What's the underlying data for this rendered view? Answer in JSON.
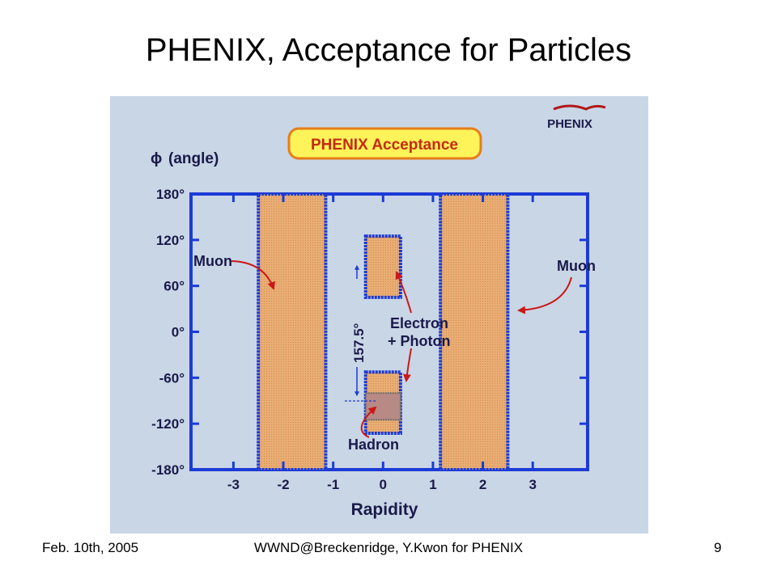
{
  "title": "PHENIX, Acceptance for Particles",
  "figure": {
    "panel_title": "PHENIX Acceptance",
    "logo_text": "PHENIX",
    "y_axis_label": "(angle)",
    "y_axis_symbol": "ϕ",
    "x_axis_label": "Rapidity",
    "x_ticks": [
      {
        "label": "-3",
        "value": -3
      },
      {
        "label": "-2",
        "value": -2
      },
      {
        "label": "-1",
        "value": -1
      },
      {
        "label": "0",
        "value": 0
      },
      {
        "label": "1",
        "value": 1
      },
      {
        "label": "2",
        "value": 2
      },
      {
        "label": "3",
        "value": 3
      }
    ],
    "y_ticks": [
      {
        "label": "180°",
        "value": 180
      },
      {
        "label": "120°",
        "value": 120
      },
      {
        "label": "60°",
        "value": 60
      },
      {
        "label": "0°",
        "value": 0
      },
      {
        "label": "-60°",
        "value": -60
      },
      {
        "label": "-120°",
        "value": -120
      },
      {
        "label": "-180°",
        "value": -180
      }
    ],
    "x_range": [
      -3.85,
      4.1
    ],
    "y_range": [
      -180,
      180
    ],
    "regions": [
      {
        "name": "muon-left",
        "x": [
          -2.5,
          -1.15
        ],
        "y": [
          -180,
          180
        ]
      },
      {
        "name": "muon-right",
        "x": [
          1.15,
          2.5
        ],
        "y": [
          -180,
          180
        ]
      },
      {
        "name": "central-top",
        "x": [
          -0.35,
          0.35
        ],
        "y": [
          45,
          125
        ]
      },
      {
        "name": "central-bottom",
        "x": [
          -0.35,
          0.35
        ],
        "y": [
          -132.5,
          -52.5
        ]
      },
      {
        "name": "hadron",
        "x": [
          -0.35,
          0.35
        ],
        "y": [
          -115,
          -80
        ]
      }
    ],
    "labels": {
      "muon_left": "Muon",
      "muon_right": "Muon",
      "electron": "Electron",
      "photon": "+ Photon",
      "hadron": "Hadron",
      "dimension": "157.5°"
    },
    "colors": {
      "background": "#c9d6e6",
      "frame": "#1c3bd6",
      "fill": "#e8ae74",
      "hadron_fill": "#b78a86",
      "arrow": "#cc1818",
      "title_box": "#fff35a",
      "title_border": "#e57d1a",
      "title_text": "#c52b10"
    }
  },
  "footer": {
    "date": "Feb. 10th, 2005",
    "center": "WWND@Breckenridge, Y.Kwon for PHENIX",
    "page": "9"
  }
}
